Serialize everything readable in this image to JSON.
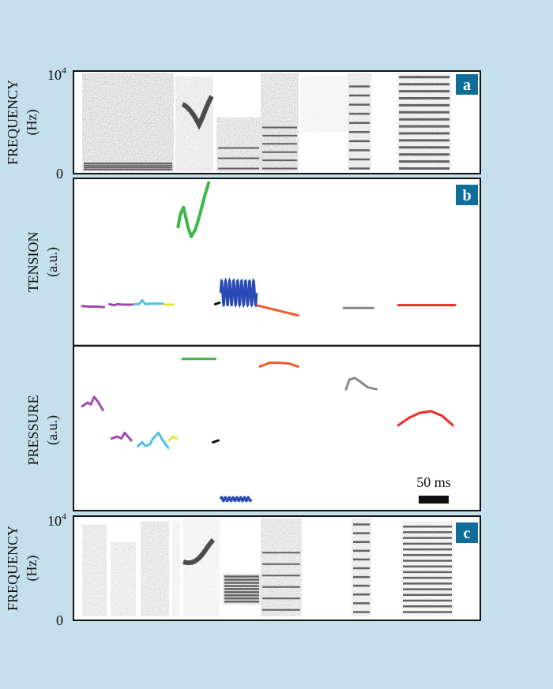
{
  "colors": {
    "background": "#c6dfed",
    "badge": "#0f6e99",
    "purple": "#a24aad",
    "cyan": "#4fc3e3",
    "yellow": "#ede536",
    "green": "#3fb64a",
    "black": "#111111",
    "blue": "#2a4bb5",
    "orange": "#ee5a2a",
    "gray": "#888888",
    "red": "#ee2a22"
  },
  "chart_data": [
    {
      "type": "heatmap",
      "panel": "a",
      "ylabel": [
        "FREQUENCY",
        "(Hz)"
      ],
      "yticks": [
        {
          "label": "0"
        },
        {
          "label": "10",
          "exp": "4"
        }
      ],
      "ylim": [
        0,
        10000
      ],
      "content": "spectrogram"
    },
    {
      "type": "line",
      "panel": "b",
      "ylabel": [
        "TENSION",
        "(a.u.)"
      ],
      "series": [
        {
          "color": "purple",
          "points": [
            [
              0.0,
              0.68
            ],
            [
              0.06,
              0.67
            ],
            [
              0.13,
              0.67
            ],
            [
              0.2,
              0.66
            ]
          ]
        },
        {
          "color": "purple",
          "points": [
            [
              0.25,
              0.72
            ],
            [
              0.29,
              0.7
            ],
            [
              0.33,
              0.72
            ],
            [
              0.37,
              0.71
            ],
            [
              0.42,
              0.71
            ],
            [
              0.46,
              0.71
            ]
          ]
        },
        {
          "color": "cyan",
          "points": [
            [
              0.48,
              0.72
            ],
            [
              0.52,
              0.72
            ],
            [
              0.55,
              0.8
            ],
            [
              0.58,
              0.72
            ],
            [
              0.63,
              0.73
            ],
            [
              0.68,
              0.73
            ],
            [
              0.74,
              0.73
            ]
          ]
        },
        {
          "color": "yellow",
          "points": [
            [
              0.75,
              0.71
            ],
            [
              0.84,
              0.71
            ]
          ]
        },
        {
          "color": "green",
          "points": [
            [
              0.88,
              2.3
            ],
            [
              0.9,
              2.55
            ],
            [
              0.93,
              2.7
            ],
            [
              0.97,
              2.3
            ],
            [
              1.0,
              2.1
            ],
            [
              1.04,
              2.25
            ],
            [
              1.08,
              2.55
            ],
            [
              1.12,
              2.9
            ],
            [
              1.16,
              3.2
            ]
          ]
        },
        {
          "color": "black",
          "points": [
            [
              1.22,
              0.72
            ],
            [
              1.26,
              0.75
            ]
          ]
        },
        {
          "color": "orange",
          "points": [
            [
              1.61,
              0.69
            ],
            [
              1.98,
              0.49
            ]
          ]
        },
        {
          "color": "gray",
          "points": [
            [
              2.4,
              0.64
            ],
            [
              2.67,
              0.64
            ]
          ]
        },
        {
          "color": "red",
          "points": [
            [
              2.9,
              0.7
            ],
            [
              3.42,
              0.7
            ]
          ]
        }
      ],
      "blue_oscillation": {
        "color": "blue",
        "t_start": 1.27,
        "t_end": 1.6,
        "center": 0.95,
        "amplitude": 0.25,
        "cycles": 9
      }
    },
    {
      "type": "line",
      "panel": "b2",
      "ylabel": [
        "PRESSURE",
        "(a.u.)"
      ],
      "scale_bar": {
        "label": "50 ms"
      },
      "series": [
        {
          "color": "purple",
          "points": [
            [
              0.0,
              2.65
            ],
            [
              0.05,
              2.75
            ],
            [
              0.08,
              2.7
            ],
            [
              0.11,
              2.9
            ],
            [
              0.15,
              2.75
            ],
            [
              0.19,
              2.55
            ]
          ]
        },
        {
          "color": "purple",
          "points": [
            [
              0.27,
              1.8
            ],
            [
              0.32,
              1.85
            ],
            [
              0.36,
              1.8
            ],
            [
              0.39,
              1.95
            ],
            [
              0.42,
              1.85
            ],
            [
              0.45,
              1.75
            ]
          ]
        },
        {
          "color": "cyan",
          "points": [
            [
              0.51,
              1.6
            ],
            [
              0.55,
              1.7
            ],
            [
              0.58,
              1.6
            ],
            [
              0.62,
              1.65
            ],
            [
              0.65,
              1.8
            ],
            [
              0.7,
              1.95
            ],
            [
              0.74,
              1.75
            ],
            [
              0.79,
              1.55
            ]
          ]
        },
        {
          "color": "yellow",
          "points": [
            [
              0.8,
              1.75
            ],
            [
              0.83,
              1.85
            ],
            [
              0.87,
              1.8
            ]
          ]
        },
        {
          "color": "green",
          "points": [
            [
              0.92,
              3.9
            ],
            [
              1.22,
              3.9
            ]
          ]
        },
        {
          "color": "black",
          "points": [
            [
              1.2,
              1.7
            ],
            [
              1.25,
              1.75
            ]
          ]
        },
        {
          "color": "orange",
          "points": [
            [
              1.63,
              3.7
            ],
            [
              1.72,
              3.8
            ],
            [
              1.8,
              3.8
            ],
            [
              1.9,
              3.78
            ],
            [
              1.98,
              3.7
            ]
          ]
        },
        {
          "color": "gray",
          "points": [
            [
              2.42,
              3.1
            ],
            [
              2.45,
              3.35
            ],
            [
              2.5,
              3.4
            ],
            [
              2.55,
              3.3
            ],
            [
              2.62,
              3.15
            ],
            [
              2.7,
              3.1
            ]
          ]
        },
        {
          "color": "red",
          "points": [
            [
              2.9,
              2.15
            ],
            [
              3.0,
              2.35
            ],
            [
              3.1,
              2.48
            ],
            [
              3.2,
              2.52
            ],
            [
              3.3,
              2.4
            ],
            [
              3.4,
              2.15
            ]
          ]
        }
      ],
      "blue_oscillation": {
        "color": "blue",
        "t_start": 1.27,
        "t_end": 1.55,
        "center": 0.2,
        "amplitude": 0.05,
        "cycles": 8
      }
    },
    {
      "type": "heatmap",
      "panel": "c",
      "ylabel": [
        "FREQUENCY",
        "(Hz)"
      ],
      "yticks": [
        {
          "label": "0"
        },
        {
          "label": "10",
          "exp": "4"
        }
      ],
      "ylim": [
        0,
        10000
      ],
      "content": "spectrogram"
    }
  ]
}
